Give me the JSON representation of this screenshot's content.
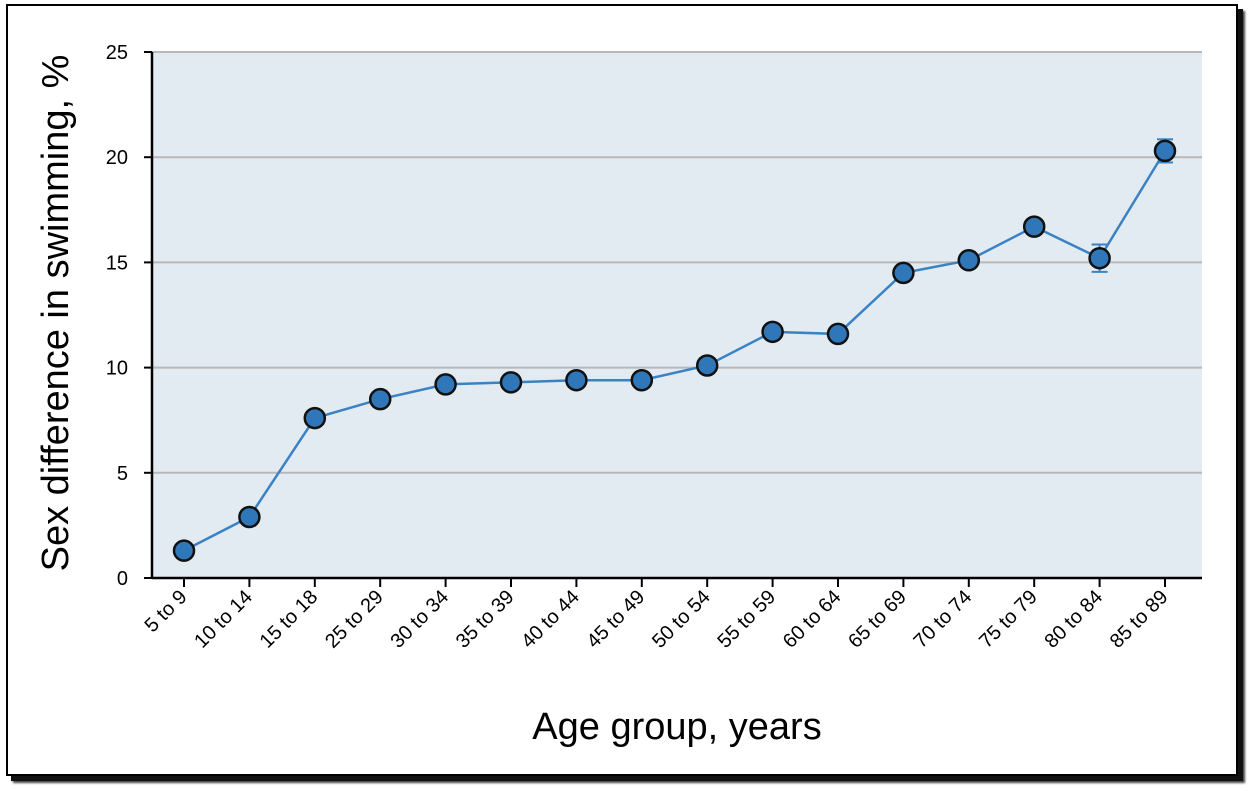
{
  "chart_data": {
    "type": "line",
    "xlabel": "Age group, years",
    "ylabel": "Sex difference in swimming, %",
    "ylim": [
      0,
      25
    ],
    "yticks": [
      0,
      5,
      10,
      15,
      20,
      25
    ],
    "grid": true,
    "categories": [
      "5 to 9",
      "10 to 14",
      "15 to 18",
      "25 to 29",
      "30 to 34",
      "35 to 39",
      "40 to 44",
      "45 to 49",
      "50 to 54",
      "55 to 59",
      "60 to 64",
      "65 to 69",
      "70 to 74",
      "75 to 79",
      "80 to 84",
      "85 to 89"
    ],
    "series": [
      {
        "values": [
          1.3,
          2.9,
          7.6,
          8.5,
          9.2,
          9.3,
          9.4,
          9.4,
          10.1,
          11.7,
          11.6,
          14.5,
          15.1,
          16.7,
          15.2,
          20.3
        ],
        "error": [
          0.1,
          0.1,
          0.1,
          0.1,
          0.1,
          0.1,
          0.1,
          0.1,
          0.1,
          0.1,
          0.1,
          0.1,
          0.1,
          0.1,
          0.65,
          0.55
        ]
      }
    ],
    "colors": {
      "line": "#3a82c4",
      "marker_fill": "#2f77b8",
      "marker_edge": "#111111",
      "plot_background": "#e2ebf2",
      "grid": "#b8b8b8"
    }
  }
}
